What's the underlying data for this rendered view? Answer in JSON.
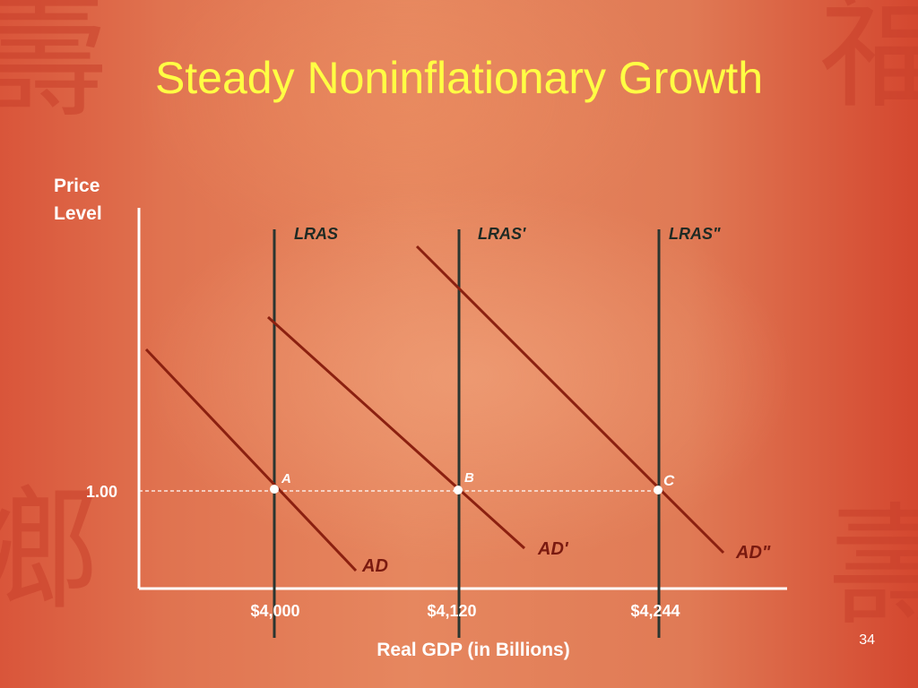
{
  "title": "Steady Noninflationary Growth",
  "page_number": "34",
  "chart_data": {
    "type": "line",
    "xlabel": "Real GDP (in Billions)",
    "ylabel": "Price Level",
    "ylabel_lines": [
      "Price",
      "Level"
    ],
    "x_ticks": [
      "$4,000",
      "$4,120",
      "$4,244"
    ],
    "y_ticks": [
      "1.00"
    ],
    "vertical_lines": [
      {
        "name": "LRAS",
        "x": "$4,000"
      },
      {
        "name": "LRAS'",
        "x": "$4,120"
      },
      {
        "name": "LRAS\"",
        "x": "$4,244"
      }
    ],
    "demand_curves": [
      {
        "name": "AD",
        "intersects_at": "$4,000"
      },
      {
        "name": "AD'",
        "intersects_at": "$4,120"
      },
      {
        "name": "AD\"",
        "intersects_at": "$4,244"
      }
    ],
    "equilibrium_points": [
      {
        "label": "A",
        "x": "$4,000",
        "y": "1.00"
      },
      {
        "label": "B",
        "x": "$4,120",
        "y": "1.00"
      },
      {
        "label": "C",
        "x": "$4,244",
        "y": "1.00"
      }
    ],
    "colors": {
      "lras": "#2a3530",
      "ad": "#8b2010",
      "axis": "#ffffff",
      "title": "#ffff44"
    }
  }
}
